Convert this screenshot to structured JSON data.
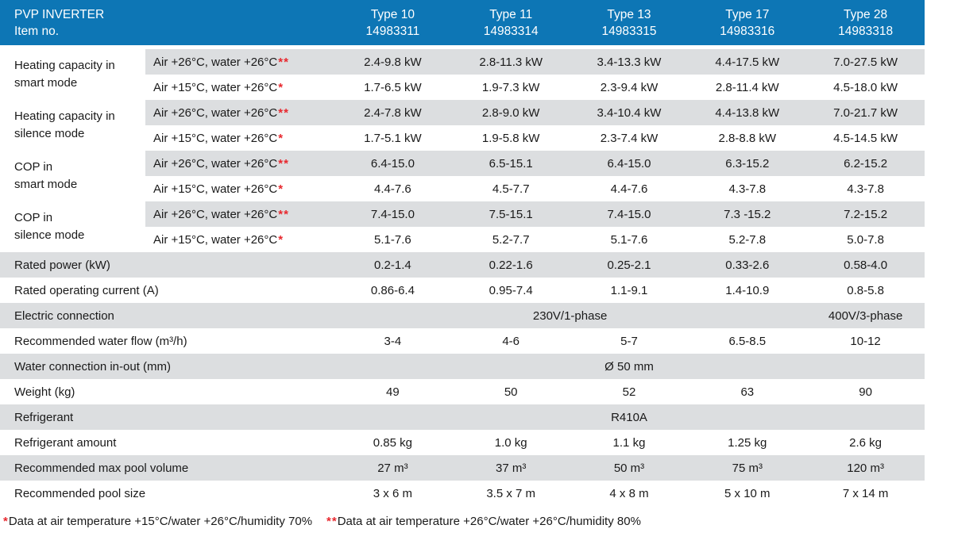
{
  "title": {
    "line1": "PVP INVERTER",
    "line2": "Item no."
  },
  "columns": [
    {
      "type": "Type 10",
      "item": "14983311"
    },
    {
      "type": "Type 11",
      "item": "14983314"
    },
    {
      "type": "Type 13",
      "item": "14983315"
    },
    {
      "type": "Type 17",
      "item": "14983316"
    },
    {
      "type": "Type 28",
      "item": "14983318"
    }
  ],
  "rows": [
    {
      "kind": "group-row",
      "group": {
        "line1": "Heating capacity in",
        "line2": "smart mode"
      },
      "condition": "Air +26°C, water +26°C",
      "stars": "**",
      "shaded": true,
      "values": [
        "2.4-9.8 kW",
        "2.8-11.3 kW",
        "3.4-13.3 kW",
        "4.4-17.5 kW",
        "7.0-27.5 kW"
      ]
    },
    {
      "kind": "group-row",
      "condition": "Air +15°C, water +26°C",
      "stars": "*",
      "shaded": false,
      "values": [
        "1.7-6.5 kW",
        "1.9-7.3 kW",
        "2.3-9.4 kW",
        "2.8-11.4 kW",
        "4.5-18.0 kW"
      ]
    },
    {
      "kind": "group-row",
      "group": {
        "line1": "Heating capacity in",
        "line2": "silence mode"
      },
      "condition": "Air +26°C, water +26°C",
      "stars": "**",
      "shaded": true,
      "values": [
        "2.4-7.8 kW",
        "2.8-9.0 kW",
        "3.4-10.4 kW",
        "4.4-13.8 kW",
        "7.0-21.7 kW"
      ]
    },
    {
      "kind": "group-row",
      "condition": "Air +15°C, water +26°C",
      "stars": "*",
      "shaded": false,
      "values": [
        "1.7-5.1 kW",
        "1.9-5.8 kW",
        "2.3-7.4 kW",
        "2.8-8.8 kW",
        "4.5-14.5 kW"
      ]
    },
    {
      "kind": "group-row",
      "group": {
        "line1": "COP in",
        "line2": "smart mode"
      },
      "condition": "Air +26°C, water +26°C",
      "stars": "**",
      "shaded": true,
      "values": [
        "6.4-15.0",
        "6.5-15.1",
        "6.4-15.0",
        "6.3-15.2",
        "6.2-15.2"
      ]
    },
    {
      "kind": "group-row",
      "condition": "Air +15°C, water +26°C",
      "stars": "*",
      "shaded": false,
      "values": [
        "4.4-7.6",
        "4.5-7.7",
        "4.4-7.6",
        "4.3-7.8",
        "4.3-7.8"
      ]
    },
    {
      "kind": "group-row",
      "group": {
        "line1": "COP in",
        "line2": "silence mode"
      },
      "condition": "Air +26°C, water +26°C",
      "stars": "**",
      "shaded": true,
      "values": [
        "7.4-15.0",
        "7.5-15.1",
        "7.4-15.0",
        "7.3 -15.2",
        "7.2-15.2"
      ]
    },
    {
      "kind": "group-row",
      "condition": "Air +15°C, water +26°C",
      "stars": "*",
      "shaded": false,
      "values": [
        "5.1-7.6",
        "5.2-7.7",
        "5.1-7.6",
        "5.2-7.8",
        "5.0-7.8"
      ]
    },
    {
      "kind": "simple",
      "label": "Rated power (kW)",
      "shaded": true,
      "values": [
        "0.2-1.4",
        "0.22-1.6",
        "0.25-2.1",
        "0.33-2.6",
        "0.58-4.0"
      ]
    },
    {
      "kind": "simple",
      "label": "Rated operating current (A)",
      "shaded": false,
      "values": [
        "0.86-6.4",
        "0.95-7.4",
        "1.1-9.1",
        "1.4-10.9",
        "0.8-5.8"
      ]
    },
    {
      "kind": "merged",
      "label": "Electric connection",
      "shaded": true,
      "cells": [
        {
          "text": "230V/1-phase",
          "span": 4
        },
        {
          "text": "400V/3-phase",
          "span": 1
        }
      ]
    },
    {
      "kind": "simple",
      "label": "Recommended water flow (m³/h)",
      "shaded": false,
      "values": [
        "3-4",
        "4-6",
        "5-7",
        "6.5-8.5",
        "10-12"
      ]
    },
    {
      "kind": "merged",
      "label": "Water connection in-out (mm)",
      "shaded": true,
      "cells": [
        {
          "text": "Ø 50 mm",
          "span": 5
        }
      ]
    },
    {
      "kind": "simple",
      "label": "Weight (kg)",
      "shaded": false,
      "values": [
        "49",
        "50",
        "52",
        "63",
        "90"
      ]
    },
    {
      "kind": "merged",
      "label": "Refrigerant",
      "shaded": true,
      "cells": [
        {
          "text": "R410A",
          "span": 5
        }
      ]
    },
    {
      "kind": "simple",
      "label": "Refrigerant amount",
      "shaded": false,
      "values": [
        "0.85 kg",
        "1.0 kg",
        "1.1 kg",
        "1.25 kg",
        "2.6 kg"
      ]
    },
    {
      "kind": "simple",
      "label": "Recommended max pool volume",
      "shaded": true,
      "values": [
        "27 m³",
        "37 m³",
        "50 m³",
        "75 m³",
        "120 m³"
      ]
    },
    {
      "kind": "simple",
      "label": "Recommended pool size",
      "shaded": false,
      "values": [
        "3 x 6 m",
        "3.5 x 7 m",
        "4 x 8 m",
        "5 x 10 m",
        "7 x 14 m"
      ]
    }
  ],
  "footnotes": [
    {
      "stars": "*",
      "text": "Data at air temperature +15°C/water +26°C/humidity 70%"
    },
    {
      "stars": "**",
      "text": "Data at air temperature +26°C/water +26°C/humidity 80%"
    }
  ],
  "colors": {
    "header_bg": "#0d76b5",
    "header_text": "#ffffff",
    "row_shaded_bg": "#dcdee0",
    "text": "#1a1a1a",
    "asterisk": "#e8282e"
  }
}
